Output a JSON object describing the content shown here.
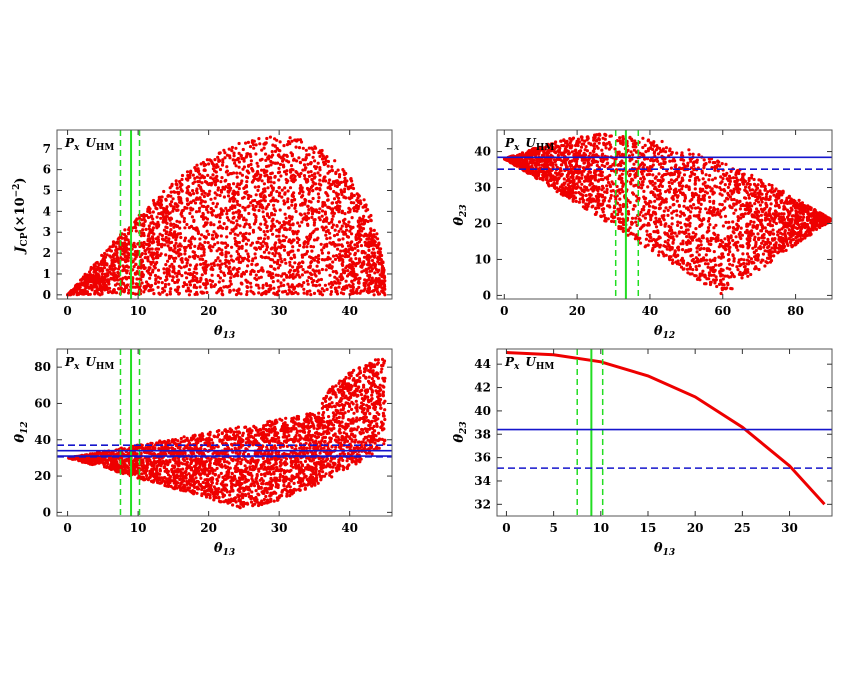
{
  "figure": {
    "panel_label_main": "P",
    "panel_label_main_sub": "x",
    "panel_label_u": "U",
    "panel_label_u_sub": "HM"
  },
  "colors": {
    "points": "#ee0000",
    "green": "#22dd22",
    "blue": "#1515cc",
    "frame": "#555555"
  },
  "chart_data": [
    {
      "type": "scatter",
      "panel": "top-left",
      "xlabel": "θ13",
      "ylabel": "J_CP(×10^-2)",
      "xlim": [
        -1.5,
        46
      ],
      "ylim": [
        -0.2,
        7.9
      ],
      "xticks": [
        0,
        10,
        20,
        30,
        40
      ],
      "yticks": [
        0,
        1,
        2,
        3,
        4,
        5,
        6,
        7
      ],
      "vlines": [
        {
          "x": 9.0,
          "style": "solid",
          "color": "green"
        },
        {
          "x": 7.5,
          "style": "dashed",
          "color": "green"
        },
        {
          "x": 10.2,
          "style": "dashed",
          "color": "green"
        }
      ],
      "hlines": [],
      "region_description": "filled scatter under envelope J = 7.6·sin(4·θ13)-shaped arc from (0,0) to peak (30,7.6) to (45,0)"
    },
    {
      "type": "scatter",
      "panel": "top-right",
      "xlabel": "θ12",
      "ylabel": "θ23",
      "xlim": [
        -2,
        90
      ],
      "ylim": [
        -1,
        46
      ],
      "xticks": [
        0,
        20,
        40,
        60,
        80
      ],
      "yticks": [
        0,
        10,
        20,
        30,
        40
      ],
      "vlines": [
        {
          "x": 33.4,
          "style": "solid",
          "color": "green"
        },
        {
          "x": 30.6,
          "style": "dashed",
          "color": "green"
        },
        {
          "x": 36.8,
          "style": "dashed",
          "color": "green"
        }
      ],
      "hlines": [
        {
          "y": 38.4,
          "style": "solid",
          "color": "blue"
        },
        {
          "y": 35.1,
          "style": "dashed",
          "color": "blue"
        }
      ],
      "region_description": "band between upper arc (0,38)-(30,45)-(90,21) and lower line (0,38)-(60,0)-(90,21)"
    },
    {
      "type": "scatter",
      "panel": "bottom-left",
      "xlabel": "θ13",
      "ylabel": "θ12",
      "xlim": [
        -1.5,
        46
      ],
      "ylim": [
        -2,
        90
      ],
      "xticks": [
        0,
        10,
        20,
        30,
        40
      ],
      "yticks": [
        0,
        20,
        40,
        60,
        80
      ],
      "vlines": [
        {
          "x": 9.0,
          "style": "solid",
          "color": "green"
        },
        {
          "x": 7.5,
          "style": "dashed",
          "color": "green"
        },
        {
          "x": 10.2,
          "style": "dashed",
          "color": "green"
        }
      ],
      "hlines": [
        {
          "y": 34.0,
          "style": "solid",
          "color": "blue"
        },
        {
          "y": 31.0,
          "style": "solid",
          "color": "blue"
        },
        {
          "y": 37.0,
          "style": "dashed",
          "color": "blue"
        },
        {
          "y": 30.6,
          "style": "dashed",
          "color": "blue"
        }
      ],
      "region_description": "wedge from (0,30) opening to (45,0)-(45,87)"
    },
    {
      "type": "line",
      "panel": "bottom-right",
      "xlabel": "θ13",
      "ylabel": "θ23",
      "xlim": [
        -1,
        34.5
      ],
      "ylim": [
        31,
        45.3
      ],
      "xticks": [
        0,
        5,
        10,
        15,
        20,
        25,
        30
      ],
      "yticks": [
        32,
        34,
        36,
        38,
        40,
        42,
        44
      ],
      "vlines": [
        {
          "x": 9.0,
          "style": "solid",
          "color": "green"
        },
        {
          "x": 7.5,
          "style": "dashed",
          "color": "green"
        },
        {
          "x": 10.2,
          "style": "dashed",
          "color": "green"
        }
      ],
      "hlines": [
        {
          "y": 38.4,
          "style": "solid",
          "color": "blue"
        },
        {
          "y": 35.1,
          "style": "dashed",
          "color": "blue"
        }
      ],
      "curve": {
        "x": [
          0,
          5,
          10,
          15,
          20,
          25,
          30,
          33.7
        ],
        "y": [
          45.0,
          44.8,
          44.2,
          43.0,
          41.2,
          38.6,
          35.3,
          32.0
        ]
      }
    }
  ]
}
